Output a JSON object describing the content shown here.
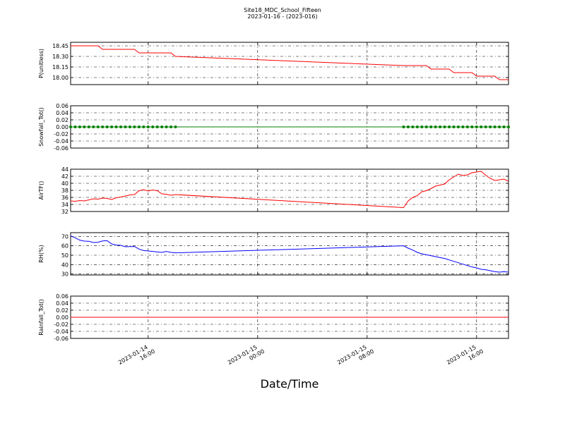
{
  "chart_data": [
    {
      "type": "line",
      "title": "Site18_MDC_School_Fifteen",
      "subtitle": "2023-01-16 - (2023-016)",
      "ylabel": "P(unitless)",
      "color": "#ff0000",
      "markers": false,
      "grid": true,
      "xlim": [
        "2023-01-14 10:20",
        "2023-01-15 18:20"
      ],
      "xticks": [
        "2023-01-14 16:00",
        "2023-01-15 00:00",
        "2023-01-15 08:00",
        "2023-01-15 16:00"
      ],
      "ylim": [
        17.9,
        18.5
      ],
      "yticks": [
        {
          "value": 18.0,
          "label": "18.00"
        },
        18.15,
        {
          "value": 18.3,
          "label": "18.30"
        },
        18.45
      ],
      "x": [
        "2023-01-14 10:20",
        "2023-01-14 10:40",
        "2023-01-14 11:00",
        "2023-01-14 11:20",
        "2023-01-14 11:40",
        "2023-01-14 12:00",
        "2023-01-14 12:20",
        "2023-01-14 12:40",
        "2023-01-14 13:00",
        "2023-01-14 13:20",
        "2023-01-14 13:40",
        "2023-01-14 14:00",
        "2023-01-14 14:20",
        "2023-01-14 14:40",
        "2023-01-14 15:00",
        "2023-01-14 15:20",
        "2023-01-14 15:40",
        "2023-01-14 16:00",
        "2023-01-14 16:20",
        "2023-01-14 16:40",
        "2023-01-14 17:00",
        "2023-01-14 17:20",
        "2023-01-14 17:40",
        "2023-01-14 18:00",
        "2023-01-15 10:40",
        "2023-01-15 11:00",
        "2023-01-15 11:20",
        "2023-01-15 11:40",
        "2023-01-15 12:00",
        "2023-01-15 12:20",
        "2023-01-15 12:40",
        "2023-01-15 13:00",
        "2023-01-15 13:20",
        "2023-01-15 13:40",
        "2023-01-15 14:00",
        "2023-01-15 14:20",
        "2023-01-15 14:40",
        "2023-01-15 15:00",
        "2023-01-15 15:20",
        "2023-01-15 15:40",
        "2023-01-15 16:00",
        "2023-01-15 16:20",
        "2023-01-15 16:40",
        "2023-01-15 17:00",
        "2023-01-15 17:20",
        "2023-01-15 17:40",
        "2023-01-15 18:00",
        "2023-01-15 18:20"
      ],
      "values": [
        18.45,
        18.45,
        18.45,
        18.45,
        18.45,
        18.45,
        18.45,
        18.4,
        18.4,
        18.4,
        18.4,
        18.4,
        18.4,
        18.4,
        18.4,
        18.35,
        18.35,
        18.35,
        18.35,
        18.35,
        18.35,
        18.35,
        18.35,
        18.3,
        18.17,
        18.17,
        18.17,
        18.17,
        18.17,
        18.17,
        18.12,
        18.12,
        18.12,
        18.12,
        18.12,
        18.07,
        18.07,
        18.07,
        18.07,
        18.07,
        18.02,
        18.02,
        18.02,
        18.02,
        18.02,
        17.97,
        17.97,
        17.97
      ]
    },
    {
      "type": "line",
      "ylabel": "Snowfall_Tot()",
      "color": "#008000",
      "markers": true,
      "grid": true,
      "xlim": [
        "2023-01-14 10:20",
        "2023-01-15 18:20"
      ],
      "xticks": [
        "2023-01-14 16:00",
        "2023-01-15 00:00",
        "2023-01-15 08:00",
        "2023-01-15 16:00"
      ],
      "ylim": [
        -0.06,
        0.06
      ],
      "yticks": [
        -0.06,
        -0.04,
        -0.02,
        {
          "value": 0,
          "label": "0.00"
        },
        0.02,
        0.04,
        0.06
      ],
      "x": [
        "2023-01-14 10:20",
        "2023-01-14 10:40",
        "2023-01-14 11:00",
        "2023-01-14 11:20",
        "2023-01-14 11:40",
        "2023-01-14 12:00",
        "2023-01-14 12:20",
        "2023-01-14 12:40",
        "2023-01-14 13:00",
        "2023-01-14 13:20",
        "2023-01-14 13:40",
        "2023-01-14 14:00",
        "2023-01-14 14:20",
        "2023-01-14 14:40",
        "2023-01-14 15:00",
        "2023-01-14 15:20",
        "2023-01-14 15:40",
        "2023-01-14 16:00",
        "2023-01-14 16:20",
        "2023-01-14 16:40",
        "2023-01-14 17:00",
        "2023-01-14 17:20",
        "2023-01-14 17:40",
        "2023-01-14 18:00",
        "2023-01-15 10:40",
        "2023-01-15 11:00",
        "2023-01-15 11:20",
        "2023-01-15 11:40",
        "2023-01-15 12:00",
        "2023-01-15 12:20",
        "2023-01-15 12:40",
        "2023-01-15 13:00",
        "2023-01-15 13:20",
        "2023-01-15 13:40",
        "2023-01-15 14:00",
        "2023-01-15 14:20",
        "2023-01-15 14:40",
        "2023-01-15 15:00",
        "2023-01-15 15:20",
        "2023-01-15 15:40",
        "2023-01-15 16:00",
        "2023-01-15 16:20",
        "2023-01-15 16:40",
        "2023-01-15 17:00",
        "2023-01-15 17:20",
        "2023-01-15 17:40",
        "2023-01-15 18:00",
        "2023-01-15 18:20"
      ],
      "values": [
        0,
        0,
        0,
        0,
        0,
        0,
        0,
        0,
        0,
        0,
        0,
        0,
        0,
        0,
        0,
        0,
        0,
        0,
        0,
        0,
        0,
        0,
        0,
        0,
        0,
        0,
        0,
        0,
        0,
        0,
        0,
        0,
        0,
        0,
        0,
        0,
        0,
        0,
        0,
        0,
        0,
        0,
        0,
        0,
        0,
        0,
        0,
        0
      ]
    },
    {
      "type": "line",
      "ylabel": "AirTF()",
      "color": "#ff0000",
      "markers": false,
      "grid": true,
      "xlim": [
        "2023-01-14 10:20",
        "2023-01-15 18:20"
      ],
      "xticks": [
        "2023-01-14 16:00",
        "2023-01-15 00:00",
        "2023-01-15 08:00",
        "2023-01-15 16:00"
      ],
      "ylim": [
        32,
        44
      ],
      "yticks": [
        32,
        34,
        36,
        38,
        40,
        42,
        44
      ],
      "x": [
        "2023-01-14 10:20",
        "2023-01-14 10:40",
        "2023-01-14 11:00",
        "2023-01-14 11:20",
        "2023-01-14 11:40",
        "2023-01-14 12:00",
        "2023-01-14 12:20",
        "2023-01-14 12:40",
        "2023-01-14 13:00",
        "2023-01-14 13:20",
        "2023-01-14 13:40",
        "2023-01-14 14:00",
        "2023-01-14 14:20",
        "2023-01-14 14:40",
        "2023-01-14 15:00",
        "2023-01-14 15:20",
        "2023-01-14 15:40",
        "2023-01-14 16:00",
        "2023-01-14 16:20",
        "2023-01-14 16:40",
        "2023-01-14 17:00",
        "2023-01-14 17:20",
        "2023-01-14 17:40",
        "2023-01-14 18:00",
        "2023-01-15 10:40",
        "2023-01-15 11:00",
        "2023-01-15 11:20",
        "2023-01-15 11:40",
        "2023-01-15 12:00",
        "2023-01-15 12:20",
        "2023-01-15 12:40",
        "2023-01-15 13:00",
        "2023-01-15 13:20",
        "2023-01-15 13:40",
        "2023-01-15 14:00",
        "2023-01-15 14:20",
        "2023-01-15 14:40",
        "2023-01-15 15:00",
        "2023-01-15 15:20",
        "2023-01-15 15:40",
        "2023-01-15 16:00",
        "2023-01-15 16:20",
        "2023-01-15 16:40",
        "2023-01-15 17:00",
        "2023-01-15 17:20",
        "2023-01-15 17:40",
        "2023-01-15 18:00",
        "2023-01-15 18:20"
      ],
      "values": [
        35.0,
        34.9,
        35.1,
        35.0,
        35.3,
        35.6,
        35.5,
        35.8,
        35.7,
        35.4,
        35.9,
        36.1,
        36.4,
        36.7,
        36.8,
        37.9,
        38.2,
        37.8,
        38.1,
        37.9,
        37.0,
        36.9,
        36.6,
        36.8,
        33.1,
        35.0,
        36.0,
        36.5,
        37.6,
        37.9,
        38.5,
        39.2,
        39.5,
        39.8,
        41.0,
        41.8,
        42.6,
        42.2,
        42.4,
        43.0,
        43.2,
        43.4,
        42.3,
        41.4,
        40.8,
        41.0,
        41.2,
        40.6
      ]
    },
    {
      "type": "line",
      "ylabel": "RH(%)",
      "color": "#0000ff",
      "markers": false,
      "grid": true,
      "xlim": [
        "2023-01-14 10:20",
        "2023-01-15 18:20"
      ],
      "xticks": [
        "2023-01-14 16:00",
        "2023-01-15 00:00",
        "2023-01-15 08:00",
        "2023-01-15 16:00"
      ],
      "ylim": [
        29,
        74
      ],
      "yticks": [
        30,
        40,
        50,
        60,
        70
      ],
      "x": [
        "2023-01-14 10:20",
        "2023-01-14 10:40",
        "2023-01-14 11:00",
        "2023-01-14 11:20",
        "2023-01-14 11:40",
        "2023-01-14 12:00",
        "2023-01-14 12:20",
        "2023-01-14 12:40",
        "2023-01-14 13:00",
        "2023-01-14 13:20",
        "2023-01-14 13:40",
        "2023-01-14 14:00",
        "2023-01-14 14:20",
        "2023-01-14 14:40",
        "2023-01-14 15:00",
        "2023-01-14 15:20",
        "2023-01-14 15:40",
        "2023-01-14 16:00",
        "2023-01-14 16:20",
        "2023-01-14 16:40",
        "2023-01-14 17:00",
        "2023-01-14 17:20",
        "2023-01-14 17:40",
        "2023-01-14 18:00",
        "2023-01-15 10:40",
        "2023-01-15 11:00",
        "2023-01-15 11:20",
        "2023-01-15 11:40",
        "2023-01-15 12:00",
        "2023-01-15 12:20",
        "2023-01-15 12:40",
        "2023-01-15 13:00",
        "2023-01-15 13:20",
        "2023-01-15 13:40",
        "2023-01-15 14:00",
        "2023-01-15 14:20",
        "2023-01-15 14:40",
        "2023-01-15 15:00",
        "2023-01-15 15:20",
        "2023-01-15 15:40",
        "2023-01-15 16:00",
        "2023-01-15 16:20",
        "2023-01-15 16:40",
        "2023-01-15 17:00",
        "2023-01-15 17:20",
        "2023-01-15 17:40",
        "2023-01-15 18:00",
        "2023-01-15 18:20"
      ],
      "values": [
        70.5,
        68.5,
        66.0,
        65.0,
        64.8,
        63.5,
        63.8,
        65.2,
        65.5,
        62.0,
        60.8,
        60.5,
        59.0,
        59.2,
        59.3,
        56.5,
        55.0,
        54.5,
        54.0,
        53.5,
        53.0,
        54.0,
        53.0,
        52.5,
        60.0,
        57.5,
        55.5,
        53.0,
        51.5,
        50.5,
        49.5,
        48.5,
        47.5,
        46.5,
        45.0,
        43.5,
        42.0,
        40.5,
        39.0,
        37.5,
        36.5,
        35.0,
        34.5,
        33.5,
        32.5,
        32.0,
        32.5,
        32.0
      ]
    },
    {
      "type": "line",
      "ylabel": "Rainfall_Tot()",
      "xlabel": "Date/Time",
      "color": "#ff0000",
      "markers": false,
      "grid": true,
      "xlim": [
        "2023-01-14 10:20",
        "2023-01-15 18:20"
      ],
      "xticks": [
        "2023-01-14 16:00",
        "2023-01-15 00:00",
        "2023-01-15 08:00",
        "2023-01-15 16:00"
      ],
      "ylim": [
        -0.06,
        0.06
      ],
      "yticks": [
        -0.06,
        -0.04,
        -0.02,
        {
          "value": 0,
          "label": "0.00"
        },
        0.02,
        0.04,
        0.06
      ],
      "x": [
        "2023-01-14 10:20",
        "2023-01-14 10:40",
        "2023-01-14 11:00",
        "2023-01-14 11:20",
        "2023-01-14 11:40",
        "2023-01-14 12:00",
        "2023-01-14 12:20",
        "2023-01-14 12:40",
        "2023-01-14 13:00",
        "2023-01-14 13:20",
        "2023-01-14 13:40",
        "2023-01-14 14:00",
        "2023-01-14 14:20",
        "2023-01-14 14:40",
        "2023-01-14 15:00",
        "2023-01-14 15:20",
        "2023-01-14 15:40",
        "2023-01-14 16:00",
        "2023-01-14 16:20",
        "2023-01-14 16:40",
        "2023-01-14 17:00",
        "2023-01-14 17:20",
        "2023-01-14 17:40",
        "2023-01-14 18:00",
        "2023-01-15 10:40",
        "2023-01-15 11:00",
        "2023-01-15 11:20",
        "2023-01-15 11:40",
        "2023-01-15 12:00",
        "2023-01-15 12:20",
        "2023-01-15 12:40",
        "2023-01-15 13:00",
        "2023-01-15 13:20",
        "2023-01-15 13:40",
        "2023-01-15 14:00",
        "2023-01-15 14:20",
        "2023-01-15 14:40",
        "2023-01-15 15:00",
        "2023-01-15 15:20",
        "2023-01-15 15:40",
        "2023-01-15 16:00",
        "2023-01-15 16:20",
        "2023-01-15 16:40",
        "2023-01-15 17:00",
        "2023-01-15 17:20",
        "2023-01-15 17:40",
        "2023-01-15 18:00",
        "2023-01-15 18:20"
      ],
      "values": [
        0,
        0,
        0,
        0,
        0,
        0,
        0,
        0,
        0,
        0,
        0,
        0,
        0,
        0,
        0,
        0,
        0,
        0,
        0,
        0,
        0,
        0,
        0,
        0,
        0,
        0,
        0,
        0,
        0,
        0,
        0,
        0,
        0,
        0,
        0,
        0,
        0,
        0,
        0,
        0,
        0,
        0,
        0,
        0,
        0,
        0,
        0,
        0
      ]
    }
  ]
}
